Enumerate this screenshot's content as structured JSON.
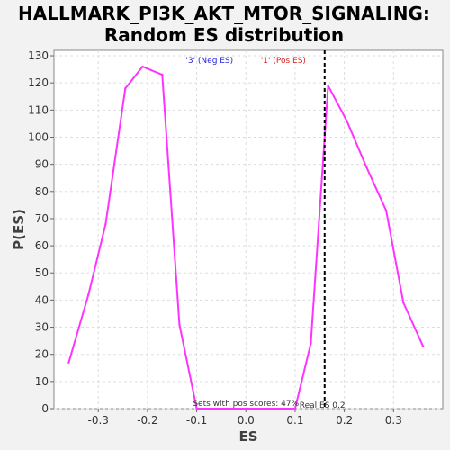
{
  "chart_data": {
    "type": "line",
    "title_lines": [
      "HALLMARK_PI3K_AKT_MTOR_SIGNALING:",
      "Random ES distribution"
    ],
    "xlabel": "ES",
    "ylabel": "P(ES)",
    "xlim": [
      -0.39,
      0.4
    ],
    "ylim": [
      0,
      132
    ],
    "x_ticks": [
      -0.3,
      -0.2,
      -0.1,
      0.0,
      0.1,
      0.2,
      0.3
    ],
    "x_tick_labels": [
      "-0.3",
      "-0.2",
      "-0.1",
      "0.0",
      "0.1",
      "0.2",
      "0.3"
    ],
    "y_ticks": [
      0,
      10,
      20,
      30,
      40,
      50,
      60,
      70,
      80,
      90,
      100,
      110,
      120,
      130
    ],
    "grid": true,
    "series": [
      {
        "color": "#ff33ff",
        "x": [
          -0.36,
          -0.32,
          -0.285,
          -0.245,
          -0.21,
          -0.17,
          -0.135,
          -0.1,
          0.1,
          0.132,
          0.167,
          0.205,
          0.245,
          0.285,
          0.32,
          0.36
        ],
        "y": [
          17,
          42,
          68,
          118,
          126,
          123,
          31,
          0,
          0,
          24,
          119,
          106,
          89,
          73,
          39,
          23
        ]
      }
    ],
    "vline": {
      "x": 0.16,
      "label": "Real ES 0.2"
    },
    "annotations": {
      "neg": {
        "text": "'3' (Neg ES)",
        "color": "#2222dd"
      },
      "pos": {
        "text": "'1' (Pos ES)",
        "color": "#dd2222"
      },
      "pos_scores": "Sets with pos scores: 47%"
    }
  }
}
